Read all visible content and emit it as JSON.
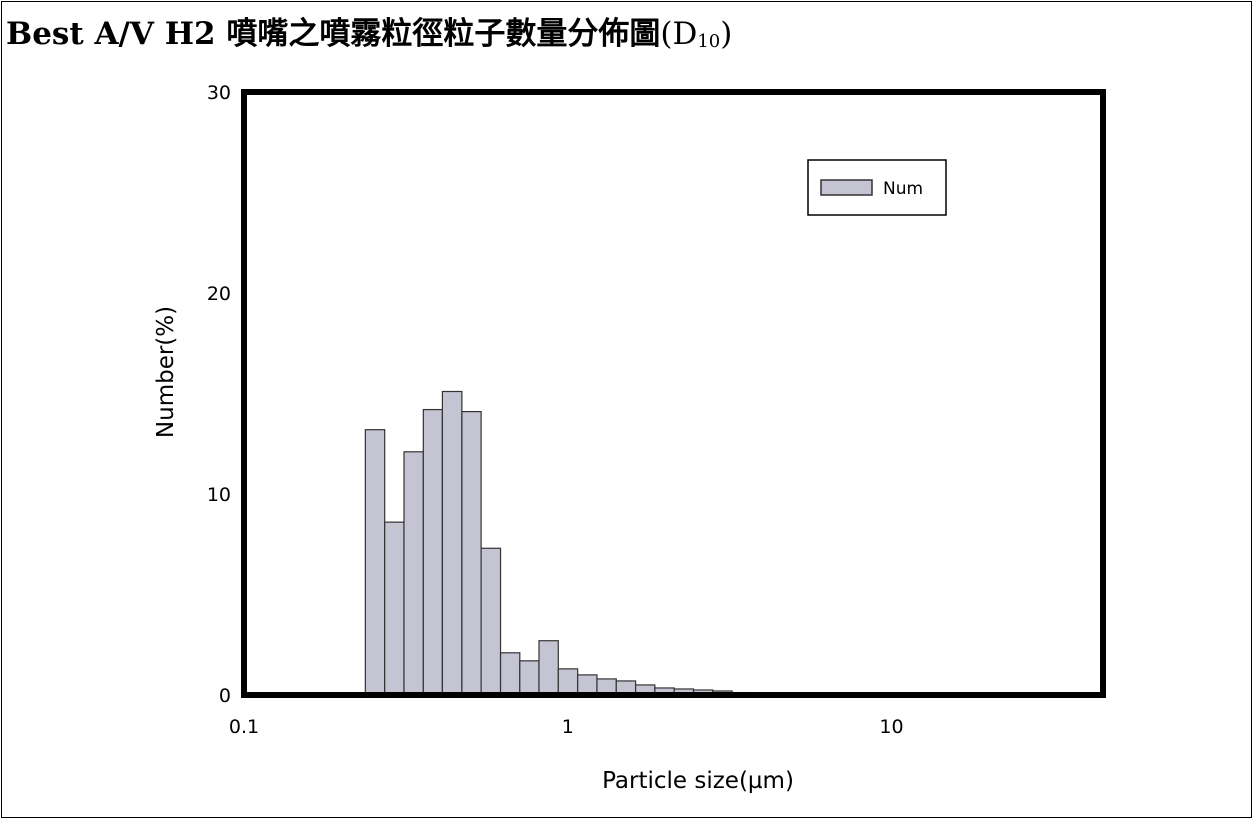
{
  "page": {
    "title_bold": "Best A/V H2 噴嘴之噴霧粒徑粒子數量分佈圖",
    "title_paren": "(D",
    "title_sub": "10",
    "title_close": ")"
  },
  "colors": {
    "bar_fill": "#c4c4d2",
    "bar_stroke": "#333333",
    "axis": "#000000"
  },
  "chart_data": {
    "type": "bar",
    "title": "",
    "xlabel": "Particle size(µm)",
    "ylabel": "Number(%)",
    "xscale": "log",
    "xlim": [
      0.1,
      45
    ],
    "ylim": [
      0,
      30
    ],
    "xticks": [
      0.1,
      1,
      10
    ],
    "xtick_labels": [
      "0.1",
      "1",
      "10"
    ],
    "yticks": [
      0,
      10,
      20,
      30
    ],
    "ytick_labels": [
      "0",
      "10",
      "20",
      "30"
    ],
    "grid": false,
    "legend": {
      "position": "top-right",
      "entries": [
        "Num"
      ]
    },
    "series": [
      {
        "name": "Num",
        "bin_edges": [
          0.237,
          0.272,
          0.312,
          0.358,
          0.41,
          0.471,
          0.54,
          0.62,
          0.711,
          0.815,
          0.935,
          1.073,
          1.231,
          1.412,
          1.62,
          1.858,
          2.132,
          2.446,
          2.806,
          3.219,
          3.693,
          4.237,
          4.861,
          5.577,
          6.398,
          7.341,
          8.422,
          9.662,
          11.09,
          12.72,
          14.59,
          16.74,
          19.2,
          22.03,
          25.28,
          29.0,
          33.27,
          38.17
        ],
        "values": [
          13.2,
          8.6,
          12.1,
          14.2,
          15.1,
          14.1,
          7.3,
          2.1,
          1.7,
          2.7,
          1.3,
          1.0,
          0.8,
          0.7,
          0.5,
          0.35,
          0.3,
          0.25,
          0.2,
          0.12,
          0.1,
          0.08,
          0.06,
          0.05,
          0.04,
          0.03,
          0.03,
          0.02,
          0.02,
          0.01,
          0.01,
          0.01,
          0.01,
          0.0,
          0.0,
          0.0,
          0.0
        ]
      }
    ]
  }
}
